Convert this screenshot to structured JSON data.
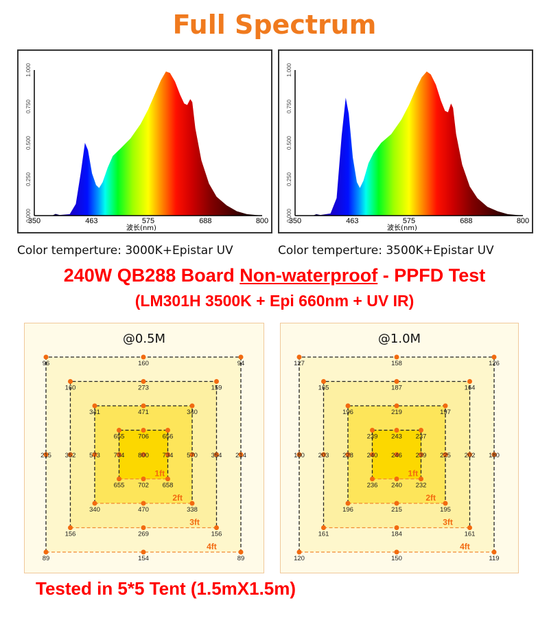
{
  "title": "Full Spectrum",
  "chart_data": [
    {
      "type": "area",
      "caption": "Color temperture: 3000K+Epistar UV",
      "xlabel": "波长(nm)",
      "xlim": [
        350,
        800
      ],
      "ylim": [
        0,
        1
      ],
      "xticks": [
        "350",
        "463",
        "575",
        "688",
        "800"
      ],
      "yticks": [
        "0.000",
        "0.250",
        "0.500",
        "0.750",
        "1.000"
      ],
      "x": [
        350,
        385,
        392,
        400,
        420,
        432,
        442,
        450,
        456,
        464,
        472,
        478,
        485,
        495,
        505,
        520,
        540,
        560,
        575,
        590,
        600,
        610,
        618,
        628,
        638,
        646,
        652,
        658,
        662,
        668,
        680,
        695,
        710,
        730,
        750,
        770,
        800
      ],
      "y": [
        0,
        0,
        0.012,
        0.004,
        0.01,
        0.08,
        0.3,
        0.5,
        0.45,
        0.29,
        0.21,
        0.19,
        0.23,
        0.33,
        0.41,
        0.46,
        0.53,
        0.63,
        0.73,
        0.85,
        0.93,
        0.99,
        0.98,
        0.92,
        0.83,
        0.77,
        0.76,
        0.8,
        0.78,
        0.6,
        0.38,
        0.22,
        0.13,
        0.07,
        0.03,
        0.01,
        0
      ]
    },
    {
      "type": "area",
      "caption": "Color temperture: 3500K+Epistar UV",
      "xlabel": "波长(nm)",
      "xlim": [
        350,
        800
      ],
      "ylim": [
        0,
        1
      ],
      "xticks": [
        "350",
        "463",
        "575",
        "688",
        "800"
      ],
      "yticks": [
        "0.000",
        "0.250",
        "0.500",
        "0.750",
        "1.000"
      ],
      "x": [
        350,
        385,
        392,
        400,
        420,
        432,
        442,
        450,
        456,
        464,
        472,
        478,
        485,
        495,
        505,
        520,
        540,
        560,
        575,
        590,
        600,
        610,
        618,
        628,
        638,
        646,
        652,
        658,
        662,
        668,
        680,
        695,
        710,
        730,
        750,
        770,
        800
      ],
      "y": [
        0,
        0,
        0.01,
        0.004,
        0.015,
        0.12,
        0.55,
        0.81,
        0.7,
        0.4,
        0.23,
        0.19,
        0.24,
        0.36,
        0.43,
        0.5,
        0.56,
        0.66,
        0.76,
        0.88,
        0.95,
        0.99,
        0.97,
        0.9,
        0.79,
        0.72,
        0.71,
        0.77,
        0.74,
        0.56,
        0.35,
        0.2,
        0.12,
        0.06,
        0.03,
        0.01,
        0
      ]
    }
  ],
  "heading": {
    "pre": "240W QB288 Board ",
    "underlined": "Non-waterproof",
    "post": " - PPFD Test"
  },
  "subheading": "(LM301H 3500K + Epi 660nm + UV IR)",
  "ppfd": [
    {
      "title": "@0.5M",
      "center": "800",
      "rings": [
        {
          "label": "1ft",
          "values": [
            "655",
            "706",
            "656",
            "734",
            "734",
            "655",
            "702",
            "658"
          ]
        },
        {
          "label": "2ft",
          "values": [
            "341",
            "471",
            "340",
            "573",
            "570",
            "340",
            "470",
            "338"
          ]
        },
        {
          "label": "3ft",
          "values": [
            "160",
            "273",
            "159",
            "352",
            "354",
            "156",
            "269",
            "156"
          ]
        },
        {
          "label": "4ft",
          "values": [
            "96",
            "160",
            "94",
            "215",
            "214",
            "89",
            "154",
            "89"
          ]
        }
      ]
    },
    {
      "title": "@1.0M",
      "center": "246",
      "rings": [
        {
          "label": "1ft",
          "values": [
            "239",
            "243",
            "237",
            "240",
            "239",
            "236",
            "240",
            "232"
          ]
        },
        {
          "label": "2ft",
          "values": [
            "196",
            "219",
            "197",
            "228",
            "225",
            "196",
            "215",
            "195"
          ]
        },
        {
          "label": "3ft",
          "values": [
            "165",
            "187",
            "164",
            "203",
            "202",
            "161",
            "184",
            "161"
          ]
        },
        {
          "label": "4ft",
          "values": [
            "127",
            "158",
            "126",
            "180",
            "180",
            "120",
            "150",
            "119"
          ]
        }
      ]
    }
  ],
  "footer": "Tested in 5*5 Tent (1.5mX1.5m)",
  "colors": {
    "title": "#f07a1e",
    "heading": "#ff0000",
    "dot": "#f26a10",
    "ring_label": "#f26a10"
  }
}
